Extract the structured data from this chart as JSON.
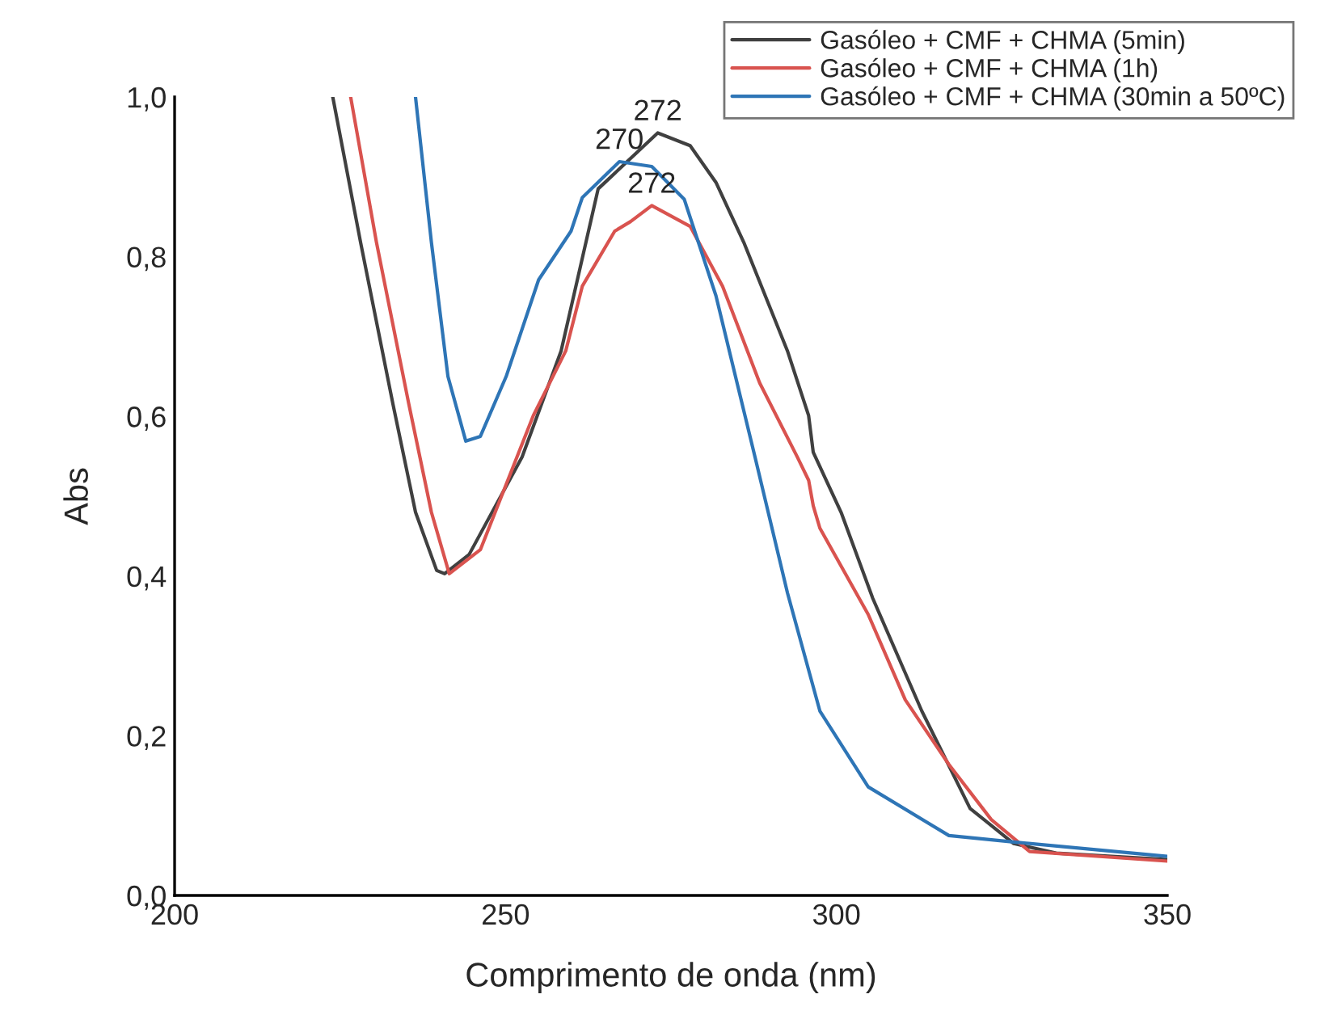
{
  "chart_data": {
    "type": "line",
    "xlabel": "Comprimento de onda (nm)",
    "ylabel": "Abs",
    "xlim": [
      200,
      350
    ],
    "xticks": [
      200,
      250,
      300,
      350
    ],
    "ylim": [
      0,
      1
    ],
    "yticks": [
      {
        "value": 0,
        "label": "0,0"
      },
      {
        "value": 0.2,
        "label": "0,2"
      },
      {
        "value": 0.4,
        "label": "0,4"
      },
      {
        "value": 0.6,
        "label": "0,6"
      },
      {
        "value": 0.8,
        "label": "0,8"
      },
      {
        "value": 1,
        "label": "1,0"
      }
    ],
    "grid": false,
    "legend": "top right",
    "marker": "none",
    "line_style": "solid",
    "series": [
      {
        "name": "Gasóleo + CMF + CHMA (5min)",
        "color": "#404040",
        "x": [
          223.9,
          228.1,
          233.0,
          236.4,
          239.6,
          240.8,
          244.5,
          252.5,
          258.4,
          264.0,
          273.0,
          277.9,
          281.8,
          286.0,
          292.6,
          295.8,
          296.5,
          300.7,
          305.5,
          312.9,
          320.2,
          326.8,
          333.2,
          350
        ],
        "values": [
          1.0,
          0.818,
          0.615,
          0.48,
          0.407,
          0.403,
          0.427,
          0.549,
          0.682,
          0.885,
          0.955,
          0.939,
          0.893,
          0.818,
          0.682,
          0.601,
          0.555,
          0.48,
          0.372,
          0.231,
          0.109,
          0.065,
          0.053,
          0.045
        ]
      },
      {
        "name": "Gasóleo + CMF + CHMA (1h)",
        "color": "#d9534f",
        "x": [
          226.6,
          230.5,
          235.4,
          238.8,
          241.5,
          246.2,
          254.2,
          259.1,
          261.6,
          266.5,
          268.9,
          272.1,
          277.9,
          282.8,
          288.4,
          294.1,
          295.8,
          296.5,
          297.5,
          304.8,
          310.4,
          317.0,
          323.4,
          329.2,
          350
        ],
        "values": [
          1.0,
          0.818,
          0.615,
          0.48,
          0.403,
          0.433,
          0.601,
          0.682,
          0.763,
          0.832,
          0.844,
          0.864,
          0.838,
          0.763,
          0.642,
          0.549,
          0.52,
          0.488,
          0.46,
          0.352,
          0.245,
          0.164,
          0.095,
          0.055,
          0.043
        ]
      },
      {
        "name": "Gasóleo + CMF + CHMA (30min a 50ºC)",
        "color": "#2e75b6",
        "x": [
          236.4,
          238.8,
          241.3,
          244.0,
          246.2,
          250.1,
          255.0,
          259.9,
          261.6,
          267.2,
          272.1,
          277.0,
          281.8,
          287.7,
          292.6,
          297.5,
          304.8,
          317.0,
          326.8,
          350
        ],
        "values": [
          1.0,
          0.818,
          0.65,
          0.569,
          0.575,
          0.65,
          0.771,
          0.832,
          0.874,
          0.919,
          0.913,
          0.872,
          0.751,
          0.549,
          0.379,
          0.231,
          0.136,
          0.075,
          0.067,
          0.049
        ]
      }
    ],
    "annotations": [
      {
        "text": "272",
        "x": 273.0,
        "y": 0.955
      },
      {
        "text": "270",
        "x": 267.2,
        "y": 0.919
      },
      {
        "text": "272",
        "x": 272.1,
        "y": 0.864
      }
    ]
  }
}
